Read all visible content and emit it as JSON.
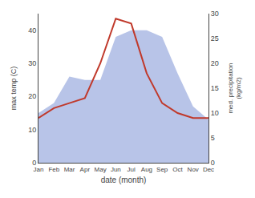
{
  "chart_data": {
    "type": "line",
    "xlabel": "date (month)",
    "ylabel": "max temp (C)",
    "y2label": "med. precipitation\n(kg/m2)",
    "categories": [
      "Jan",
      "Feb",
      "Mar",
      "Apr",
      "May",
      "Jun",
      "Jul",
      "Aug",
      "Sep",
      "Oct",
      "Nov",
      "Dec"
    ],
    "series": [
      {
        "type": "area",
        "color": "#b8c4e8",
        "values": [
          15,
          18,
          26,
          25,
          25,
          38,
          40,
          40,
          38,
          27,
          17,
          13
        ]
      },
      {
        "type": "line",
        "color": "#c0392b",
        "axis": "y2",
        "values": [
          9,
          11,
          12,
          13,
          20,
          29,
          28,
          18,
          12,
          10,
          9,
          9
        ]
      }
    ],
    "ylim": [
      0,
      45
    ],
    "yticks": [
      0,
      10,
      20,
      30,
      40
    ],
    "y2lim": [
      0,
      30
    ],
    "y2ticks": [
      0,
      5,
      10,
      15,
      20,
      25,
      30
    ],
    "grid": false
  }
}
